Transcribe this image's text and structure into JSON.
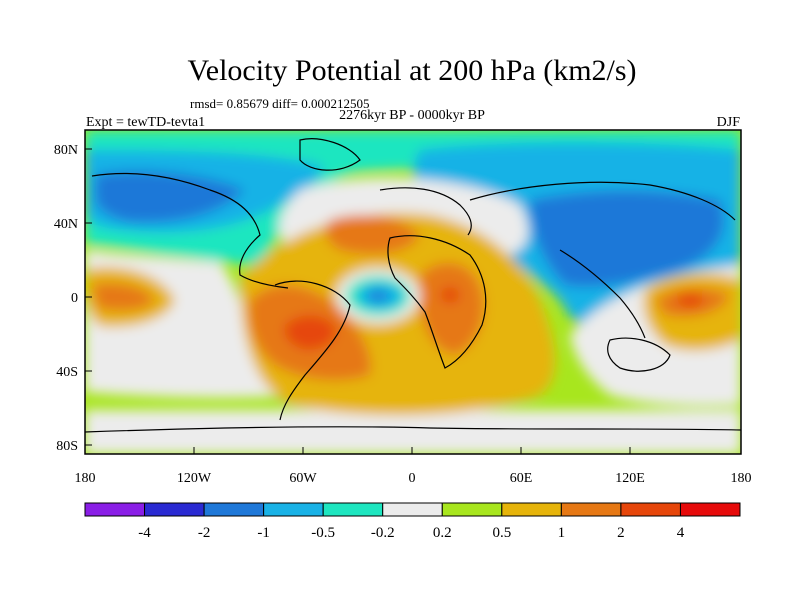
{
  "map": {
    "title": "Velocity Potential at 200 hPa (km2/s)",
    "stats_line": "rmsd= 0.85679 diff= 0.000212505",
    "period_line": "2276kyr BP - 0000kyr BP",
    "experiment": "Expt = tewTD-tevta1",
    "season": "DJF",
    "lon_ticks": [
      "180",
      "120W",
      "60W",
      "0",
      "60E",
      "120E",
      "180"
    ],
    "lat_ticks": [
      "80N",
      "40N",
      "0",
      "40S",
      "80S"
    ]
  },
  "legend": {
    "colors": [
      "#8a1ee6",
      "#2a2ad2",
      "#1f78d8",
      "#19b2e6",
      "#1ee6c0",
      "#ececec",
      "#a8e61e",
      "#e6b40a",
      "#e67814",
      "#e6460a",
      "#e60a0a"
    ],
    "labels": [
      "-4",
      "-2",
      "-1",
      "-0.5",
      "-0.2",
      "0.2",
      "0.5",
      "1",
      "2",
      "4"
    ]
  }
}
